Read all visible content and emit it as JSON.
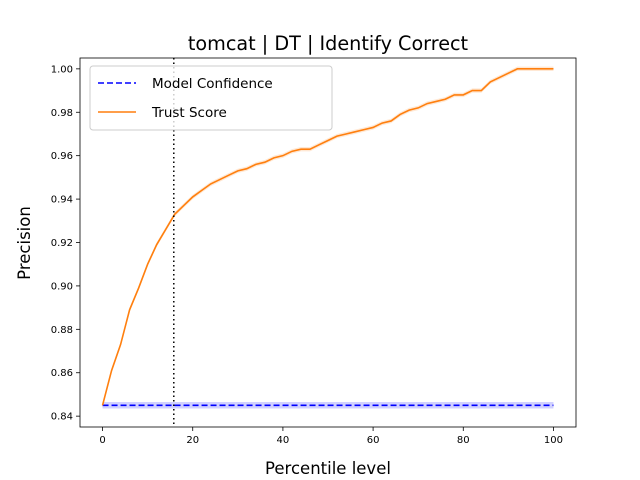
{
  "chart_data": {
    "type": "line",
    "title": "tomcat | DT | Identify Correct",
    "xlabel": "Percentile level",
    "ylabel": "Precision",
    "xlim": [
      -5,
      105
    ],
    "ylim": [
      0.835,
      1.005
    ],
    "x_ticks": [
      0,
      20,
      40,
      60,
      80,
      100
    ],
    "y_ticks": [
      0.84,
      0.86,
      0.88,
      0.9,
      0.92,
      0.94,
      0.96,
      0.98,
      1.0
    ],
    "x_tick_labels": [
      "0",
      "20",
      "40",
      "60",
      "80",
      "100"
    ],
    "y_tick_labels": [
      "0.84",
      "0.86",
      "0.88",
      "0.90",
      "0.92",
      "0.94",
      "0.96",
      "0.98",
      "1.00"
    ],
    "grid": false,
    "legend_position": "top-left",
    "vline": {
      "x": 15.8,
      "style": "dotted",
      "color": "#000000"
    },
    "series": [
      {
        "name": "Model Confidence",
        "color": "#0000ff",
        "style": "dashed",
        "x": [
          0,
          100
        ],
        "y": [
          0.845,
          0.845
        ],
        "band": 0.0015
      },
      {
        "name": "Trust Score",
        "color": "#ff7f0e",
        "style": "solid",
        "x": [
          0,
          2,
          4,
          6,
          8,
          10,
          12,
          14,
          16,
          18,
          20,
          22,
          24,
          26,
          28,
          30,
          32,
          34,
          36,
          38,
          40,
          42,
          44,
          46,
          48,
          50,
          52,
          54,
          56,
          58,
          60,
          62,
          64,
          66,
          68,
          70,
          72,
          74,
          76,
          78,
          80,
          82,
          84,
          86,
          88,
          90,
          92,
          94,
          96,
          98,
          100
        ],
        "y": [
          0.845,
          0.861,
          0.873,
          0.889,
          0.899,
          0.91,
          0.919,
          0.926,
          0.933,
          0.937,
          0.941,
          0.944,
          0.947,
          0.949,
          0.951,
          0.953,
          0.954,
          0.956,
          0.957,
          0.959,
          0.96,
          0.962,
          0.963,
          0.963,
          0.965,
          0.967,
          0.969,
          0.97,
          0.971,
          0.972,
          0.973,
          0.975,
          0.976,
          0.979,
          0.981,
          0.982,
          0.984,
          0.985,
          0.986,
          0.988,
          0.988,
          0.99,
          0.99,
          0.994,
          0.996,
          0.998,
          1.0,
          1.0,
          1.0,
          1.0,
          1.0
        ],
        "band": 0.001
      }
    ]
  }
}
